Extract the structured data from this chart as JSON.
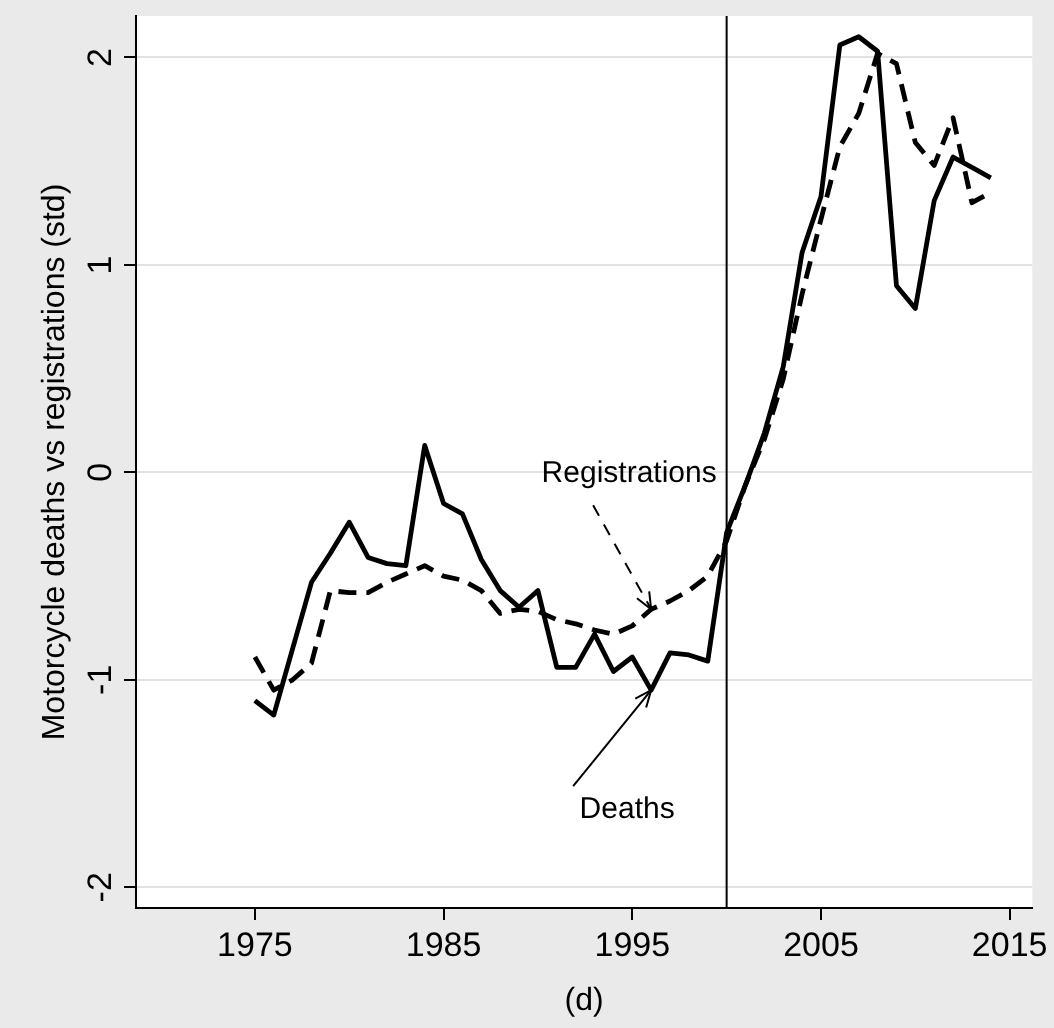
{
  "chart_data": {
    "type": "line",
    "xlabel": "(d)",
    "ylabel": "Motorcycle deaths vs registrations (std)",
    "x": [
      1975,
      1976,
      1977,
      1978,
      1979,
      1980,
      1981,
      1982,
      1983,
      1984,
      1985,
      1986,
      1987,
      1988,
      1989,
      1990,
      1991,
      1992,
      1993,
      1994,
      1995,
      1996,
      1997,
      1998,
      1999,
      2000,
      2001,
      2002,
      2003,
      2004,
      2005,
      2006,
      2007,
      2008,
      2009,
      2010,
      2011,
      2012,
      2013,
      2014
    ],
    "series": [
      {
        "color": "#000000",
        "line_style": "solid",
        "values": [
          -1.1,
          -1.17,
          -0.85,
          -0.53,
          -0.39,
          -0.24,
          -0.41,
          -0.44,
          -0.45,
          0.13,
          -0.15,
          -0.2,
          -0.42,
          -0.57,
          -0.65,
          -0.57,
          -0.94,
          -0.94,
          -0.78,
          -0.96,
          -0.89,
          -1.05,
          -0.87,
          -0.88,
          -0.91,
          -0.29,
          -0.06,
          0.19,
          0.51,
          1.06,
          1.33,
          2.06,
          2.1,
          2.03,
          0.9,
          0.79,
          1.31,
          1.52,
          1.47,
          1.42
        ]
      },
      {
        "color": "#000000",
        "line_style": "dashed",
        "values": [
          -0.89,
          -1.05,
          -1.0,
          -0.92,
          -0.57,
          -0.58,
          -0.58,
          -0.53,
          -0.49,
          -0.45,
          -0.5,
          -0.52,
          -0.57,
          -0.68,
          -0.66,
          -0.67,
          -0.71,
          -0.73,
          -0.76,
          -0.78,
          -0.74,
          -0.66,
          -0.62,
          -0.57,
          -0.5,
          -0.33,
          -0.06,
          0.16,
          0.45,
          0.86,
          1.22,
          1.57,
          1.73,
          2.02,
          1.97,
          1.59,
          1.48,
          1.71,
          1.3,
          1.35
        ]
      }
    ],
    "xlim": [
      1968.7,
      2016.2
    ],
    "xticks": [
      1975,
      1985,
      1995,
      2005,
      2015
    ],
    "ylim": [
      -2.1,
      2.2
    ],
    "yticks": [
      -2,
      -1,
      0,
      1,
      2
    ],
    "grid": "y",
    "ref_lines": [
      {
        "axis": "x",
        "value": 2000,
        "color": "#000000"
      }
    ],
    "annotations": [
      {
        "text": "Deaths",
        "x": 1996,
        "y": -1.05
      },
      {
        "text": "Registrations",
        "x": 1996,
        "y": -0.66
      }
    ]
  }
}
